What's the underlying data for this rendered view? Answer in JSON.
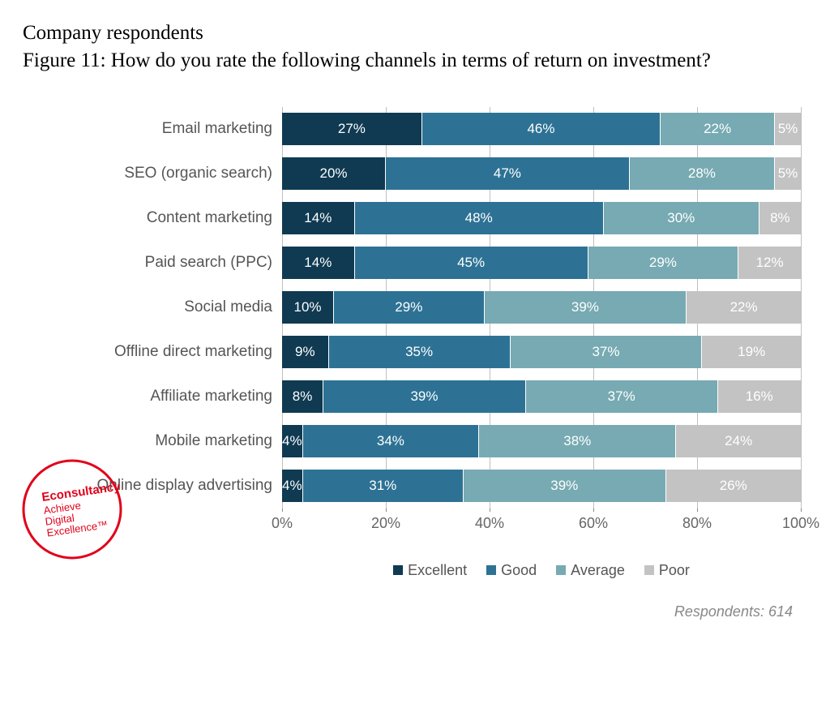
{
  "header": {
    "line1": "Company respondents",
    "line2": "Figure 11: How do you rate the following channels in terms of return on investment?"
  },
  "chart": {
    "type": "stacked-bar-horizontal",
    "xlim": [
      0,
      100
    ],
    "xtick_step": 20,
    "xtick_labels": [
      "0%",
      "20%",
      "40%",
      "60%",
      "80%",
      "100%"
    ],
    "grid_color": "#bfbfbf",
    "background_color": "#ffffff",
    "label_font": "Arial",
    "label_fontsize": 19,
    "label_color": "#555555",
    "value_fontsize": 17,
    "series": [
      {
        "key": "excellent",
        "label": "Excellent",
        "color": "#0f3a52"
      },
      {
        "key": "good",
        "label": "Good",
        "color": "#2d7294"
      },
      {
        "key": "average",
        "label": "Average",
        "color": "#77aab2"
      },
      {
        "key": "poor",
        "label": "Poor",
        "color": "#c3c3c3"
      }
    ],
    "categories": [
      {
        "label": "Email marketing",
        "values": [
          27,
          46,
          22,
          5
        ]
      },
      {
        "label": "SEO (organic search)",
        "values": [
          20,
          47,
          28,
          5
        ]
      },
      {
        "label": "Content marketing",
        "values": [
          14,
          48,
          30,
          8
        ]
      },
      {
        "label": "Paid search (PPC)",
        "values": [
          14,
          45,
          29,
          12
        ]
      },
      {
        "label": "Social media",
        "values": [
          10,
          29,
          39,
          22
        ]
      },
      {
        "label": "Offline direct marketing",
        "values": [
          9,
          35,
          37,
          19
        ]
      },
      {
        "label": "Affiliate marketing",
        "values": [
          8,
          39,
          37,
          16
        ]
      },
      {
        "label": "Mobile marketing",
        "values": [
          4,
          34,
          38,
          24
        ]
      },
      {
        "label": "Online display advertising",
        "values": [
          4,
          31,
          39,
          26
        ]
      }
    ]
  },
  "footnote": {
    "prefix": "Respondents: ",
    "count": "614"
  },
  "stamp": {
    "line1": "Econsultancy",
    "line2": "Achieve",
    "line3": "Digital",
    "line4": "Excellence",
    "color": "#e2001a",
    "tm": "™"
  }
}
